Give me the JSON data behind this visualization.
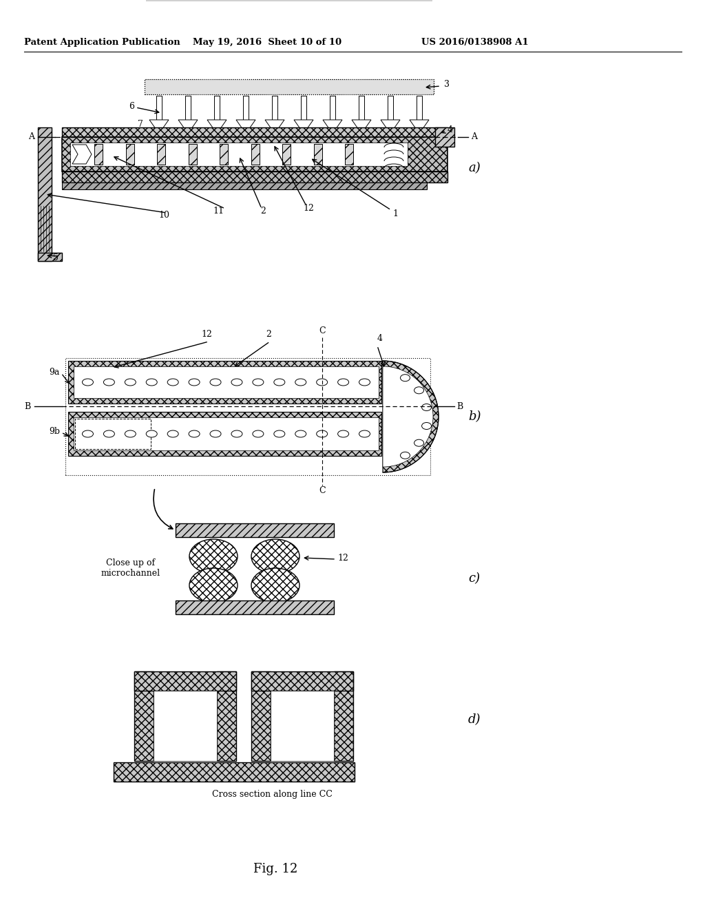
{
  "header_left": "Patent Application Publication",
  "header_mid": "May 19, 2016  Sheet 10 of 10",
  "header_right": "US 2016/0138908 A1",
  "fig_label": "Fig. 12",
  "caption_d": "Cross section along line CC",
  "bg_color": "#ffffff"
}
